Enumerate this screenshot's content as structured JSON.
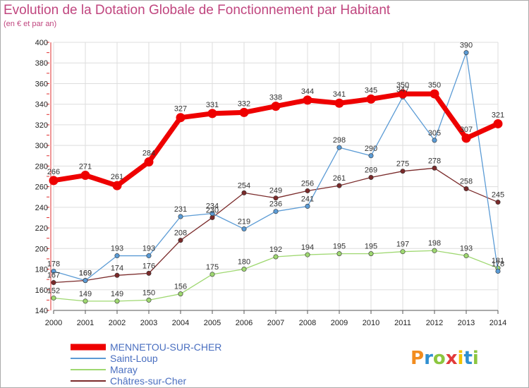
{
  "header": {
    "title": "Evolution de la Dotation Globale de Fonctionnement par Habitant",
    "subtitle": "(en € et par an)"
  },
  "logo": {
    "text": "Proxiti",
    "colors": [
      "#f28c1e",
      "#2f8fd1",
      "#8cc63f",
      "#e23a3a",
      "#f2c200",
      "#2f8fd1",
      "#8cc63f"
    ]
  },
  "chart_data": {
    "type": "line",
    "title": "Evolution de la Dotation Globale de Fonctionnement par Habitant",
    "subtitle": "(en € et par an)",
    "x": [
      2000,
      2001,
      2002,
      2003,
      2004,
      2005,
      2006,
      2007,
      2008,
      2009,
      2010,
      2011,
      2012,
      2013,
      2014
    ],
    "ylim": [
      140,
      400
    ],
    "yticks": [
      140,
      160,
      180,
      200,
      220,
      240,
      260,
      280,
      300,
      320,
      340,
      360,
      380,
      400
    ],
    "grid": true,
    "legend_position": "bottom-left",
    "series": [
      {
        "name": "MENNETOU-SUR-CHER",
        "color": "#ee0000",
        "values": [
          266,
          271,
          261,
          284,
          327,
          331,
          332,
          338,
          344,
          341,
          345,
          350,
          350,
          307,
          321
        ]
      },
      {
        "name": "Saint-Loup",
        "color": "#5b9bd5",
        "values": [
          178,
          169,
          193,
          193,
          231,
          234,
          219,
          236,
          241,
          298,
          290,
          347,
          305,
          390,
          178
        ]
      },
      {
        "name": "Maray",
        "color": "#9fd871",
        "values": [
          152,
          149,
          149,
          150,
          156,
          175,
          180,
          192,
          194,
          195,
          195,
          197,
          198,
          193,
          181
        ]
      },
      {
        "name": "Châtres-sur-Cher",
        "color": "#7a2a2a",
        "values": [
          167,
          169,
          174,
          176,
          208,
          230,
          254,
          249,
          256,
          261,
          269,
          275,
          278,
          258,
          245
        ]
      }
    ]
  }
}
